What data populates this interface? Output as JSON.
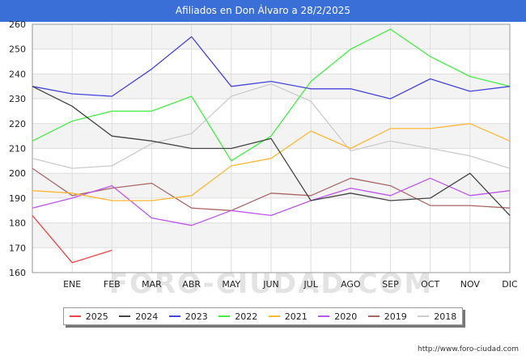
{
  "title": "Afiliados en Don Álvaro a 28/2/2025",
  "source_url": "http://www.foro-ciudad.com",
  "watermark": "FORO-CIUDAD.COM",
  "chart_data": {
    "type": "line",
    "title": "Afiliados en Don Álvaro a 28/2/2025",
    "xlabel": "",
    "ylabel": "",
    "categories": [
      "",
      "ENE",
      "FEB",
      "MAR",
      "ABR",
      "MAY",
      "JUN",
      "JUL",
      "AGO",
      "SEP",
      "OCT",
      "NOV",
      "DIC"
    ],
    "ylim": [
      160,
      260
    ],
    "yticks": [
      160,
      170,
      180,
      190,
      200,
      210,
      220,
      230,
      240,
      250,
      260
    ],
    "grid": true,
    "legend_position": "bottom",
    "series": [
      {
        "name": "2025",
        "color": "#ee4444",
        "values": [
          183,
          164,
          169,
          null,
          null,
          null,
          null,
          null,
          null,
          null,
          null,
          null,
          null
        ]
      },
      {
        "name": "2024",
        "color": "#444444",
        "values": [
          235,
          227,
          215,
          213,
          210,
          210,
          214,
          189,
          192,
          189,
          190,
          200,
          183
        ]
      },
      {
        "name": "2023",
        "color": "#4444dd",
        "values": [
          235,
          232,
          231,
          242,
          255,
          235,
          237,
          234,
          234,
          230,
          238,
          233,
          235
        ]
      },
      {
        "name": "2022",
        "color": "#44ee44",
        "values": [
          213,
          221,
          225,
          225,
          231,
          205,
          215,
          237,
          250,
          258,
          247,
          239,
          235
        ]
      },
      {
        "name": "2021",
        "color": "#ffb833",
        "values": [
          193,
          192,
          189,
          189,
          191,
          203,
          206,
          217,
          210,
          218,
          218,
          220,
          213
        ]
      },
      {
        "name": "2020",
        "color": "#bb55ee",
        "values": [
          186,
          190,
          195,
          182,
          179,
          185,
          183,
          189,
          194,
          191,
          198,
          191,
          193
        ]
      },
      {
        "name": "2019",
        "color": "#aa6666",
        "values": [
          202,
          191,
          194,
          196,
          186,
          185,
          192,
          191,
          198,
          195,
          187,
          187,
          186
        ]
      },
      {
        "name": "2018",
        "color": "#cccccc",
        "values": [
          206,
          202,
          203,
          212,
          216,
          231,
          236,
          229,
          209,
          213,
          210,
          207,
          202
        ]
      }
    ]
  }
}
